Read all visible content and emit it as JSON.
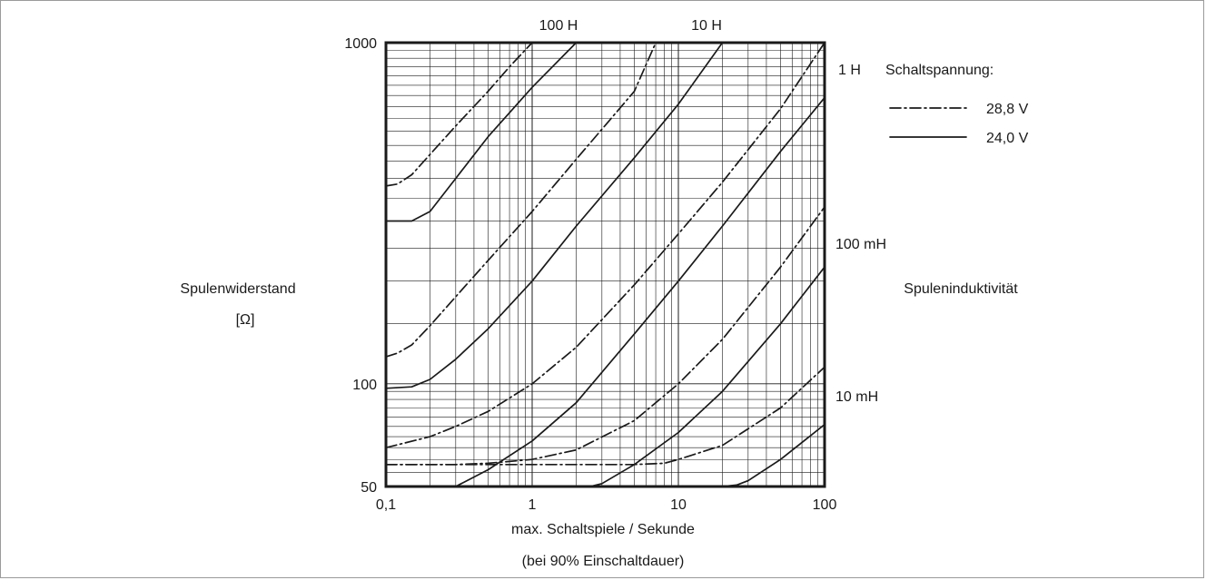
{
  "chart_data": {
    "type": "line",
    "xscale": "log",
    "yscale": "log",
    "xlim": [
      0.1,
      100
    ],
    "ylim": [
      50,
      1000
    ],
    "grid": true,
    "xlabel": "max. Schaltspiele / Sekunde",
    "xlabel2": "(bei 90% Einschaltdauer)",
    "ylabel": "Spulenwiderstand",
    "ylabel_unit": "[Ω]",
    "right_axis_label": "Spuleninduktivität",
    "xticks": [
      "0,1",
      "1",
      "10",
      "100"
    ],
    "yticks": [
      "50",
      "100",
      "1000"
    ],
    "inductance_labels": [
      {
        "label": "100 H",
        "position": "top"
      },
      {
        "label": "10 H",
        "position": "top"
      },
      {
        "label": "1 H",
        "position": "right"
      },
      {
        "label": "100 mH",
        "position": "right"
      },
      {
        "label": "10 mH",
        "position": "right"
      }
    ],
    "legend": {
      "title": "Schaltspannung:",
      "position": "top-right",
      "entries": [
        {
          "label": "28,8 V",
          "style": "dash-dot"
        },
        {
          "label": "24,0 V",
          "style": "solid"
        }
      ]
    },
    "series": [
      {
        "voltage": "28,8 V",
        "style": "dash-dot",
        "inductance": "100 H",
        "points": [
          [
            0.1,
            380
          ],
          [
            0.12,
            385
          ],
          [
            0.15,
            410
          ],
          [
            0.2,
            470
          ],
          [
            0.3,
            570
          ],
          [
            0.5,
            720
          ],
          [
            0.7,
            850
          ],
          [
            1.0,
            1000
          ]
        ]
      },
      {
        "voltage": "24,0 V",
        "style": "solid",
        "inductance": "100 H",
        "points": [
          [
            0.1,
            300
          ],
          [
            0.15,
            300
          ],
          [
            0.2,
            320
          ],
          [
            0.3,
            400
          ],
          [
            0.5,
            530
          ],
          [
            1.0,
            740
          ],
          [
            2.0,
            1000
          ]
        ]
      },
      {
        "voltage": "28,8 V",
        "style": "dash-dot",
        "inductance": "10 H",
        "points": [
          [
            0.1,
            120
          ],
          [
            0.12,
            123
          ],
          [
            0.15,
            130
          ],
          [
            0.2,
            148
          ],
          [
            0.3,
            180
          ],
          [
            0.5,
            230
          ],
          [
            1.0,
            320
          ],
          [
            2.0,
            455
          ],
          [
            5.0,
            720
          ],
          [
            7.0,
            1000
          ]
        ]
      },
      {
        "voltage": "24,0 V",
        "style": "solid",
        "inductance": "10 H",
        "points": [
          [
            0.1,
            97
          ],
          [
            0.15,
            98
          ],
          [
            0.2,
            103
          ],
          [
            0.3,
            118
          ],
          [
            0.5,
            145
          ],
          [
            1.0,
            200
          ],
          [
            2.0,
            290
          ],
          [
            5.0,
            460
          ],
          [
            10,
            660
          ],
          [
            20,
            1000
          ]
        ]
      },
      {
        "voltage": "28,8 V",
        "style": "dash-dot",
        "inductance": "1 H",
        "points": [
          [
            0.1,
            65
          ],
          [
            0.2,
            70
          ],
          [
            0.3,
            75
          ],
          [
            0.5,
            83
          ],
          [
            1.0,
            100
          ],
          [
            2.0,
            128
          ],
          [
            5.0,
            195
          ],
          [
            10,
            275
          ],
          [
            20,
            390
          ],
          [
            50,
            640
          ],
          [
            100,
            1000
          ]
        ]
      },
      {
        "voltage": "24,0 V",
        "style": "solid",
        "inductance": "1 H",
        "points": [
          [
            0.1,
            50
          ],
          [
            0.3,
            50
          ],
          [
            0.5,
            56
          ],
          [
            1.0,
            68
          ],
          [
            2.0,
            88
          ],
          [
            5.0,
            140
          ],
          [
            10,
            200
          ],
          [
            20,
            290
          ],
          [
            50,
            480
          ],
          [
            100,
            690
          ]
        ]
      },
      {
        "voltage": "28,8 V",
        "style": "dash-dot",
        "inductance": "100 mH",
        "points": [
          [
            0.1,
            58
          ],
          [
            0.3,
            58
          ],
          [
            0.5,
            58.5
          ],
          [
            1.0,
            60
          ],
          [
            2.0,
            64
          ],
          [
            5.0,
            78
          ],
          [
            10,
            100
          ],
          [
            20,
            135
          ],
          [
            50,
            220
          ],
          [
            100,
            330
          ]
        ]
      },
      {
        "voltage": "24,0 V",
        "style": "solid",
        "inductance": "100 mH",
        "points": [
          [
            0.1,
            50
          ],
          [
            2.5,
            50
          ],
          [
            3.0,
            51
          ],
          [
            5.0,
            58
          ],
          [
            10,
            72
          ],
          [
            20,
            95
          ],
          [
            50,
            150
          ],
          [
            100,
            220
          ]
        ]
      },
      {
        "voltage": "28,8 V",
        "style": "dash-dot",
        "inductance": "10 mH",
        "points": [
          [
            0.1,
            58
          ],
          [
            5.0,
            58
          ],
          [
            8.0,
            58.5
          ],
          [
            10,
            60
          ],
          [
            20,
            66
          ],
          [
            50,
            85
          ],
          [
            100,
            112
          ]
        ]
      },
      {
        "voltage": "24,0 V",
        "style": "solid",
        "inductance": "10 mH",
        "points": [
          [
            0.1,
            50
          ],
          [
            20,
            50
          ],
          [
            25,
            50.5
          ],
          [
            30,
            52
          ],
          [
            50,
            60
          ],
          [
            100,
            76
          ]
        ]
      }
    ]
  }
}
